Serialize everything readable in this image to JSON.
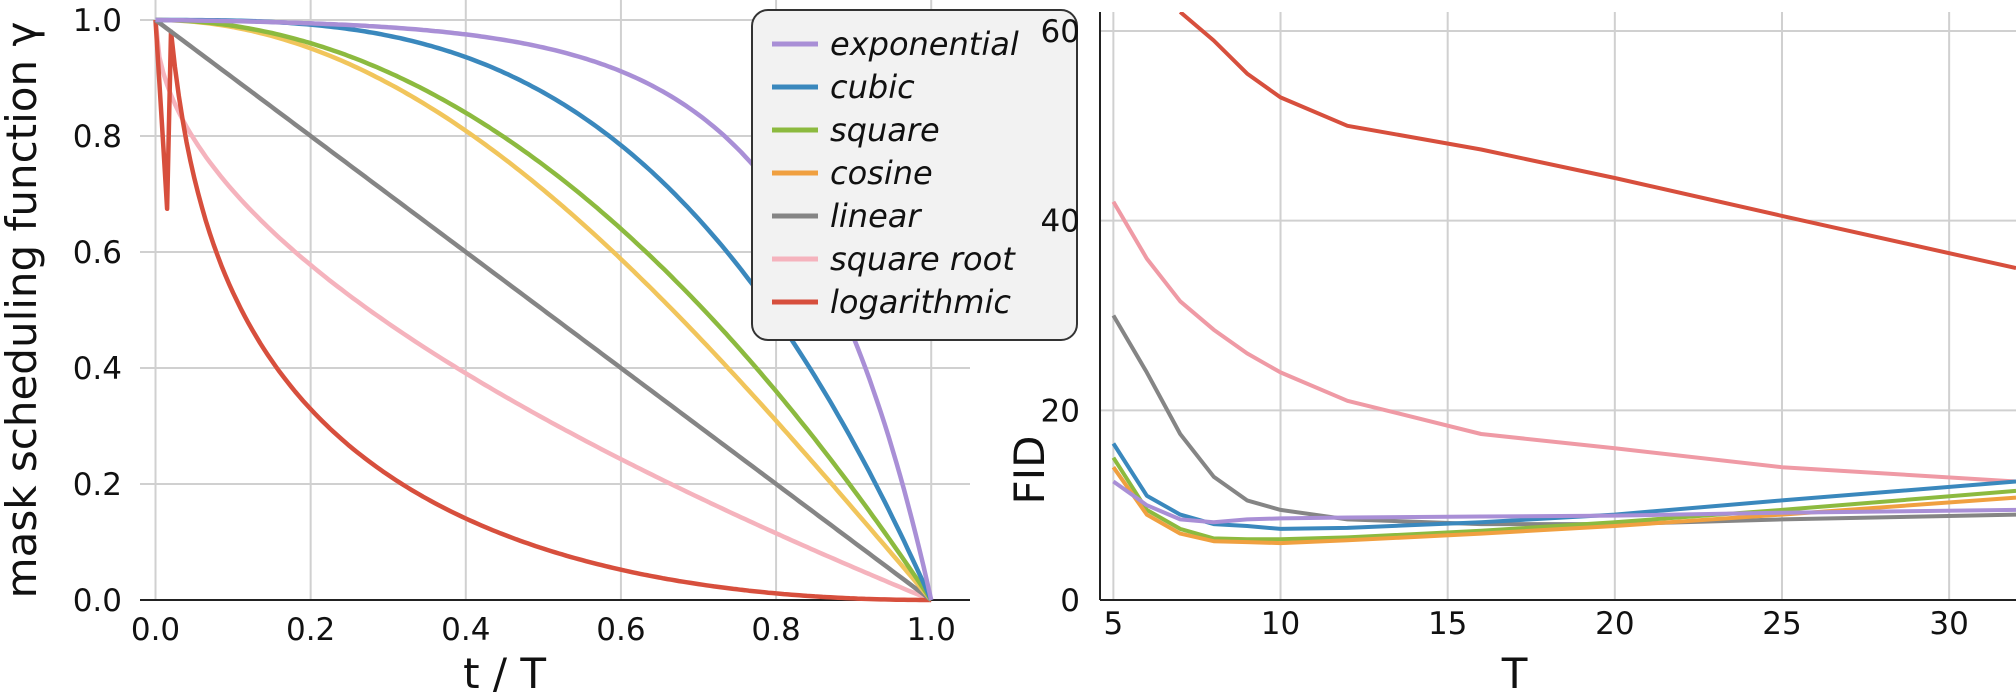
{
  "colors": {
    "exponential": "#a98fd6",
    "cubic": "#3a88bd",
    "square": "#8cba3f",
    "cosine": "#f0a040",
    "cosine_left": "#f1c55b",
    "linear": "#858585",
    "square_root": "#f5b3bd",
    "square_root_right": "#ef9aa5",
    "logarithmic": "#d74f3d"
  },
  "chart_data": [
    {
      "type": "line",
      "xlabel": "t / T",
      "ylabel": "mask scheduling function  γ",
      "xlim": [
        -0.02,
        1.05
      ],
      "ylim": [
        0,
        1.0
      ],
      "xticks": [
        "0.0",
        "0.2",
        "0.4",
        "0.6",
        "0.8",
        "1.0"
      ],
      "yticks": [
        "0.0",
        "0.2",
        "0.4",
        "0.6",
        "0.8",
        "1.0"
      ],
      "grid": true,
      "legend": {
        "placement": "upper-right",
        "entries": [
          "exponential",
          "cubic",
          "square",
          "cosine",
          "linear",
          "square root",
          "logarithmic"
        ]
      },
      "series": [
        {
          "name": "exponential",
          "formula": "1 - exp(x) scaled",
          "x": [
            0,
            0.2,
            0.4,
            0.6,
            0.8,
            0.9,
            1.0
          ],
          "values": [
            1.0,
            0.995,
            0.98,
            0.93,
            0.76,
            0.5,
            0.0
          ]
        },
        {
          "name": "cubic",
          "x": [
            0,
            0.2,
            0.4,
            0.6,
            0.8,
            1.0
          ],
          "values": [
            1.0,
            0.992,
            0.936,
            0.784,
            0.488,
            0.0
          ]
        },
        {
          "name": "square",
          "x": [
            0,
            0.2,
            0.4,
            0.6,
            0.8,
            1.0
          ],
          "values": [
            1.0,
            0.96,
            0.84,
            0.64,
            0.36,
            0.0
          ]
        },
        {
          "name": "cosine",
          "x": [
            0,
            0.2,
            0.4,
            0.6,
            0.8,
            1.0
          ],
          "values": [
            1.0,
            0.951,
            0.809,
            0.588,
            0.309,
            0.0
          ]
        },
        {
          "name": "linear",
          "x": [
            0,
            0.2,
            0.4,
            0.6,
            0.8,
            1.0
          ],
          "values": [
            1.0,
            0.8,
            0.6,
            0.4,
            0.2,
            0.0
          ]
        },
        {
          "name": "square root",
          "x": [
            0,
            0.2,
            0.4,
            0.6,
            0.8,
            1.0
          ],
          "values": [
            1.0,
            0.553,
            0.368,
            0.225,
            0.106,
            0.0
          ]
        },
        {
          "name": "logarithmic",
          "x": [
            0,
            0.02,
            0.2,
            0.4,
            0.6,
            0.8,
            1.0
          ],
          "values": [
            1.0,
            0.566,
            0.233,
            0.131,
            0.074,
            0.032,
            0.0
          ]
        }
      ]
    },
    {
      "type": "line",
      "xlabel": "T",
      "ylabel": "FID",
      "xlim": [
        4.6,
        32
      ],
      "ylim": [
        0,
        62
      ],
      "xticks": [
        "5",
        "10",
        "15",
        "20",
        "25",
        "30"
      ],
      "yticks": [
        "0",
        "20",
        "40",
        "60"
      ],
      "grid": true,
      "x": [
        5,
        6,
        7,
        8,
        9,
        10,
        12,
        16,
        20,
        25,
        32
      ],
      "series": [
        {
          "name": "logarithmic",
          "x": [
            7,
            8,
            9,
            10,
            12,
            16,
            20,
            25,
            32
          ],
          "values": [
            62,
            59,
            55.5,
            53,
            50,
            47.5,
            44.5,
            40.5,
            35
          ]
        },
        {
          "name": "square root",
          "x": [
            5,
            6,
            7,
            8,
            9,
            10,
            12,
            16,
            20,
            25,
            32
          ],
          "values": [
            42,
            36,
            31.5,
            28.5,
            26,
            24,
            21,
            17.5,
            16,
            14,
            12.5
          ]
        },
        {
          "name": "linear",
          "x": [
            5,
            6,
            7,
            8,
            9,
            10,
            12,
            16,
            20,
            25,
            32
          ],
          "values": [
            30,
            24,
            17.5,
            13,
            10.5,
            9.5,
            8.5,
            8,
            8,
            8.5,
            9
          ]
        },
        {
          "name": "cubic",
          "x": [
            5,
            6,
            7,
            8,
            9,
            10,
            12,
            16,
            20,
            25,
            32
          ],
          "values": [
            16.5,
            11,
            9,
            8,
            7.8,
            7.5,
            7.6,
            8.2,
            9,
            10.5,
            12.5
          ]
        },
        {
          "name": "square",
          "x": [
            5,
            6,
            7,
            8,
            9,
            10,
            12,
            16,
            20,
            25,
            32
          ],
          "values": [
            15,
            9.5,
            7.5,
            6.5,
            6.4,
            6.4,
            6.6,
            7.3,
            8.2,
            9.5,
            11.5
          ]
        },
        {
          "name": "cosine",
          "x": [
            5,
            6,
            7,
            8,
            9,
            10,
            12,
            16,
            20,
            25,
            32
          ],
          "values": [
            14,
            9,
            7,
            6.2,
            6.1,
            6.0,
            6.3,
            7.0,
            7.8,
            9,
            10.8
          ]
        },
        {
          "name": "exponential",
          "x": [
            5,
            6,
            7,
            8,
            9,
            10,
            12,
            16,
            20,
            25,
            32
          ],
          "values": [
            12.5,
            10,
            8.5,
            8.2,
            8.5,
            8.6,
            8.7,
            8.8,
            8.9,
            9.2,
            9.5
          ]
        }
      ]
    }
  ]
}
